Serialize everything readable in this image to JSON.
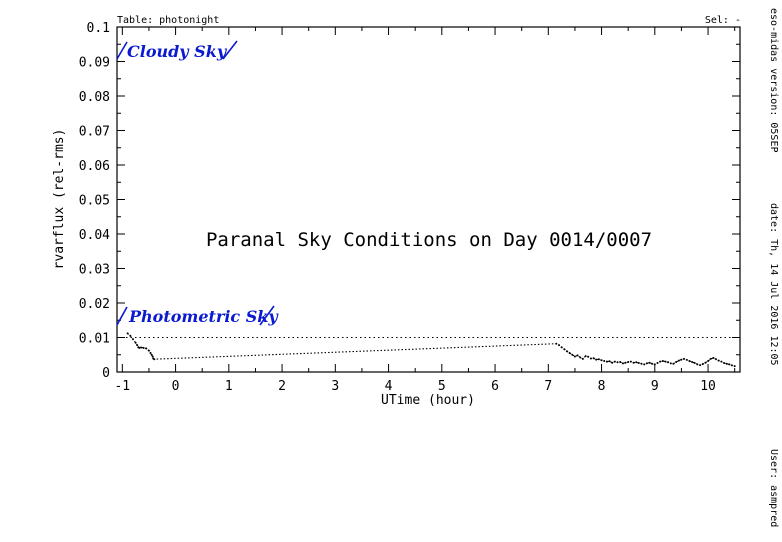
{
  "chart_data": {
    "type": "line",
    "table_label": "Table: photonight",
    "sel_label": "Sel: -",
    "title": "Paranal Sky Conditions on Day 0014/0007",
    "xlabel": "UTime (hour)",
    "ylabel": "rvarflux (rel-rms)",
    "xlim": [
      -1.1,
      10.6
    ],
    "ylim": [
      0,
      0.1
    ],
    "x_ticks": [
      -1,
      0,
      1,
      2,
      3,
      4,
      5,
      6,
      7,
      8,
      9,
      10
    ],
    "x_tick_labels": [
      "-1",
      "0",
      "1",
      "2",
      "3",
      "4",
      "5",
      "6",
      "7",
      "8",
      "9",
      "10"
    ],
    "y_ticks": [
      0,
      0.01,
      0.02,
      0.03,
      0.04,
      0.05,
      0.06,
      0.07,
      0.08,
      0.09,
      0.1
    ],
    "y_tick_labels": [
      "0",
      "0.01",
      "0.02",
      "0.03",
      "0.04",
      "0.05",
      "0.06",
      "0.07",
      "0.08",
      "0.09",
      "0.1"
    ],
    "threshold_line": 0.01,
    "threshold_style": "dotted",
    "annotations": {
      "cloudy": "Cloudy Sky",
      "photometric": "Photometric Sky"
    },
    "series": [
      {
        "style": "dotted",
        "x": [
          -0.9,
          -0.85,
          -0.8,
          -0.75,
          -0.72,
          -0.7,
          -0.68,
          -0.65,
          -0.6,
          -0.55,
          -0.5,
          -0.47,
          -0.45,
          -0.43,
          -0.42,
          -0.4,
          7.15,
          7.2,
          7.25,
          7.3,
          7.35,
          7.4,
          7.45,
          7.5,
          7.55,
          7.6,
          7.65,
          7.7,
          7.75,
          7.8,
          7.85,
          7.9,
          7.95,
          8.0,
          8.05,
          8.1,
          8.15,
          8.2,
          8.25,
          8.3,
          8.35,
          8.4,
          8.45,
          8.5,
          8.55,
          8.6,
          8.65,
          8.7,
          8.75,
          8.8,
          8.85,
          8.9,
          8.95,
          9.0,
          9.05,
          9.1,
          9.15,
          9.2,
          9.25,
          9.3,
          9.35,
          9.4,
          9.45,
          9.5,
          9.55,
          9.6,
          9.65,
          9.7,
          9.75,
          9.8,
          9.85,
          9.9,
          9.95,
          10.0,
          10.05,
          10.1,
          10.15,
          10.2,
          10.25,
          10.3,
          10.35,
          10.4,
          10.45,
          10.5
        ],
        "y": [
          0.0112,
          0.0105,
          0.0095,
          0.0085,
          0.0078,
          0.0072,
          0.007,
          0.0071,
          0.007,
          0.0068,
          0.0062,
          0.0055,
          0.005,
          0.0045,
          0.0039,
          0.0037,
          0.0082,
          0.0078,
          0.0072,
          0.0066,
          0.006,
          0.0055,
          0.005,
          0.0045,
          0.0048,
          0.0042,
          0.0038,
          0.0046,
          0.0044,
          0.0039,
          0.004,
          0.0036,
          0.0037,
          0.0034,
          0.0032,
          0.003,
          0.0031,
          0.0027,
          0.003,
          0.0028,
          0.0029,
          0.0025,
          0.0027,
          0.0029,
          0.003,
          0.0027,
          0.0028,
          0.0026,
          0.0024,
          0.0022,
          0.0025,
          0.0027,
          0.0024,
          0.0022,
          0.0026,
          0.003,
          0.0032,
          0.003,
          0.0028,
          0.0025,
          0.0024,
          0.0029,
          0.0033,
          0.0036,
          0.0038,
          0.0035,
          0.0032,
          0.0029,
          0.0026,
          0.0022,
          0.002,
          0.0023,
          0.0027,
          0.0032,
          0.0038,
          0.0041,
          0.0037,
          0.0033,
          0.003,
          0.0026,
          0.0024,
          0.0022,
          0.0019,
          0.0017
        ]
      }
    ]
  },
  "side_info": {
    "version": "eso-midas version: 05SEP",
    "date": "date: Th, 14 Jul 2016 12:05",
    "user": "User: asmpred"
  }
}
